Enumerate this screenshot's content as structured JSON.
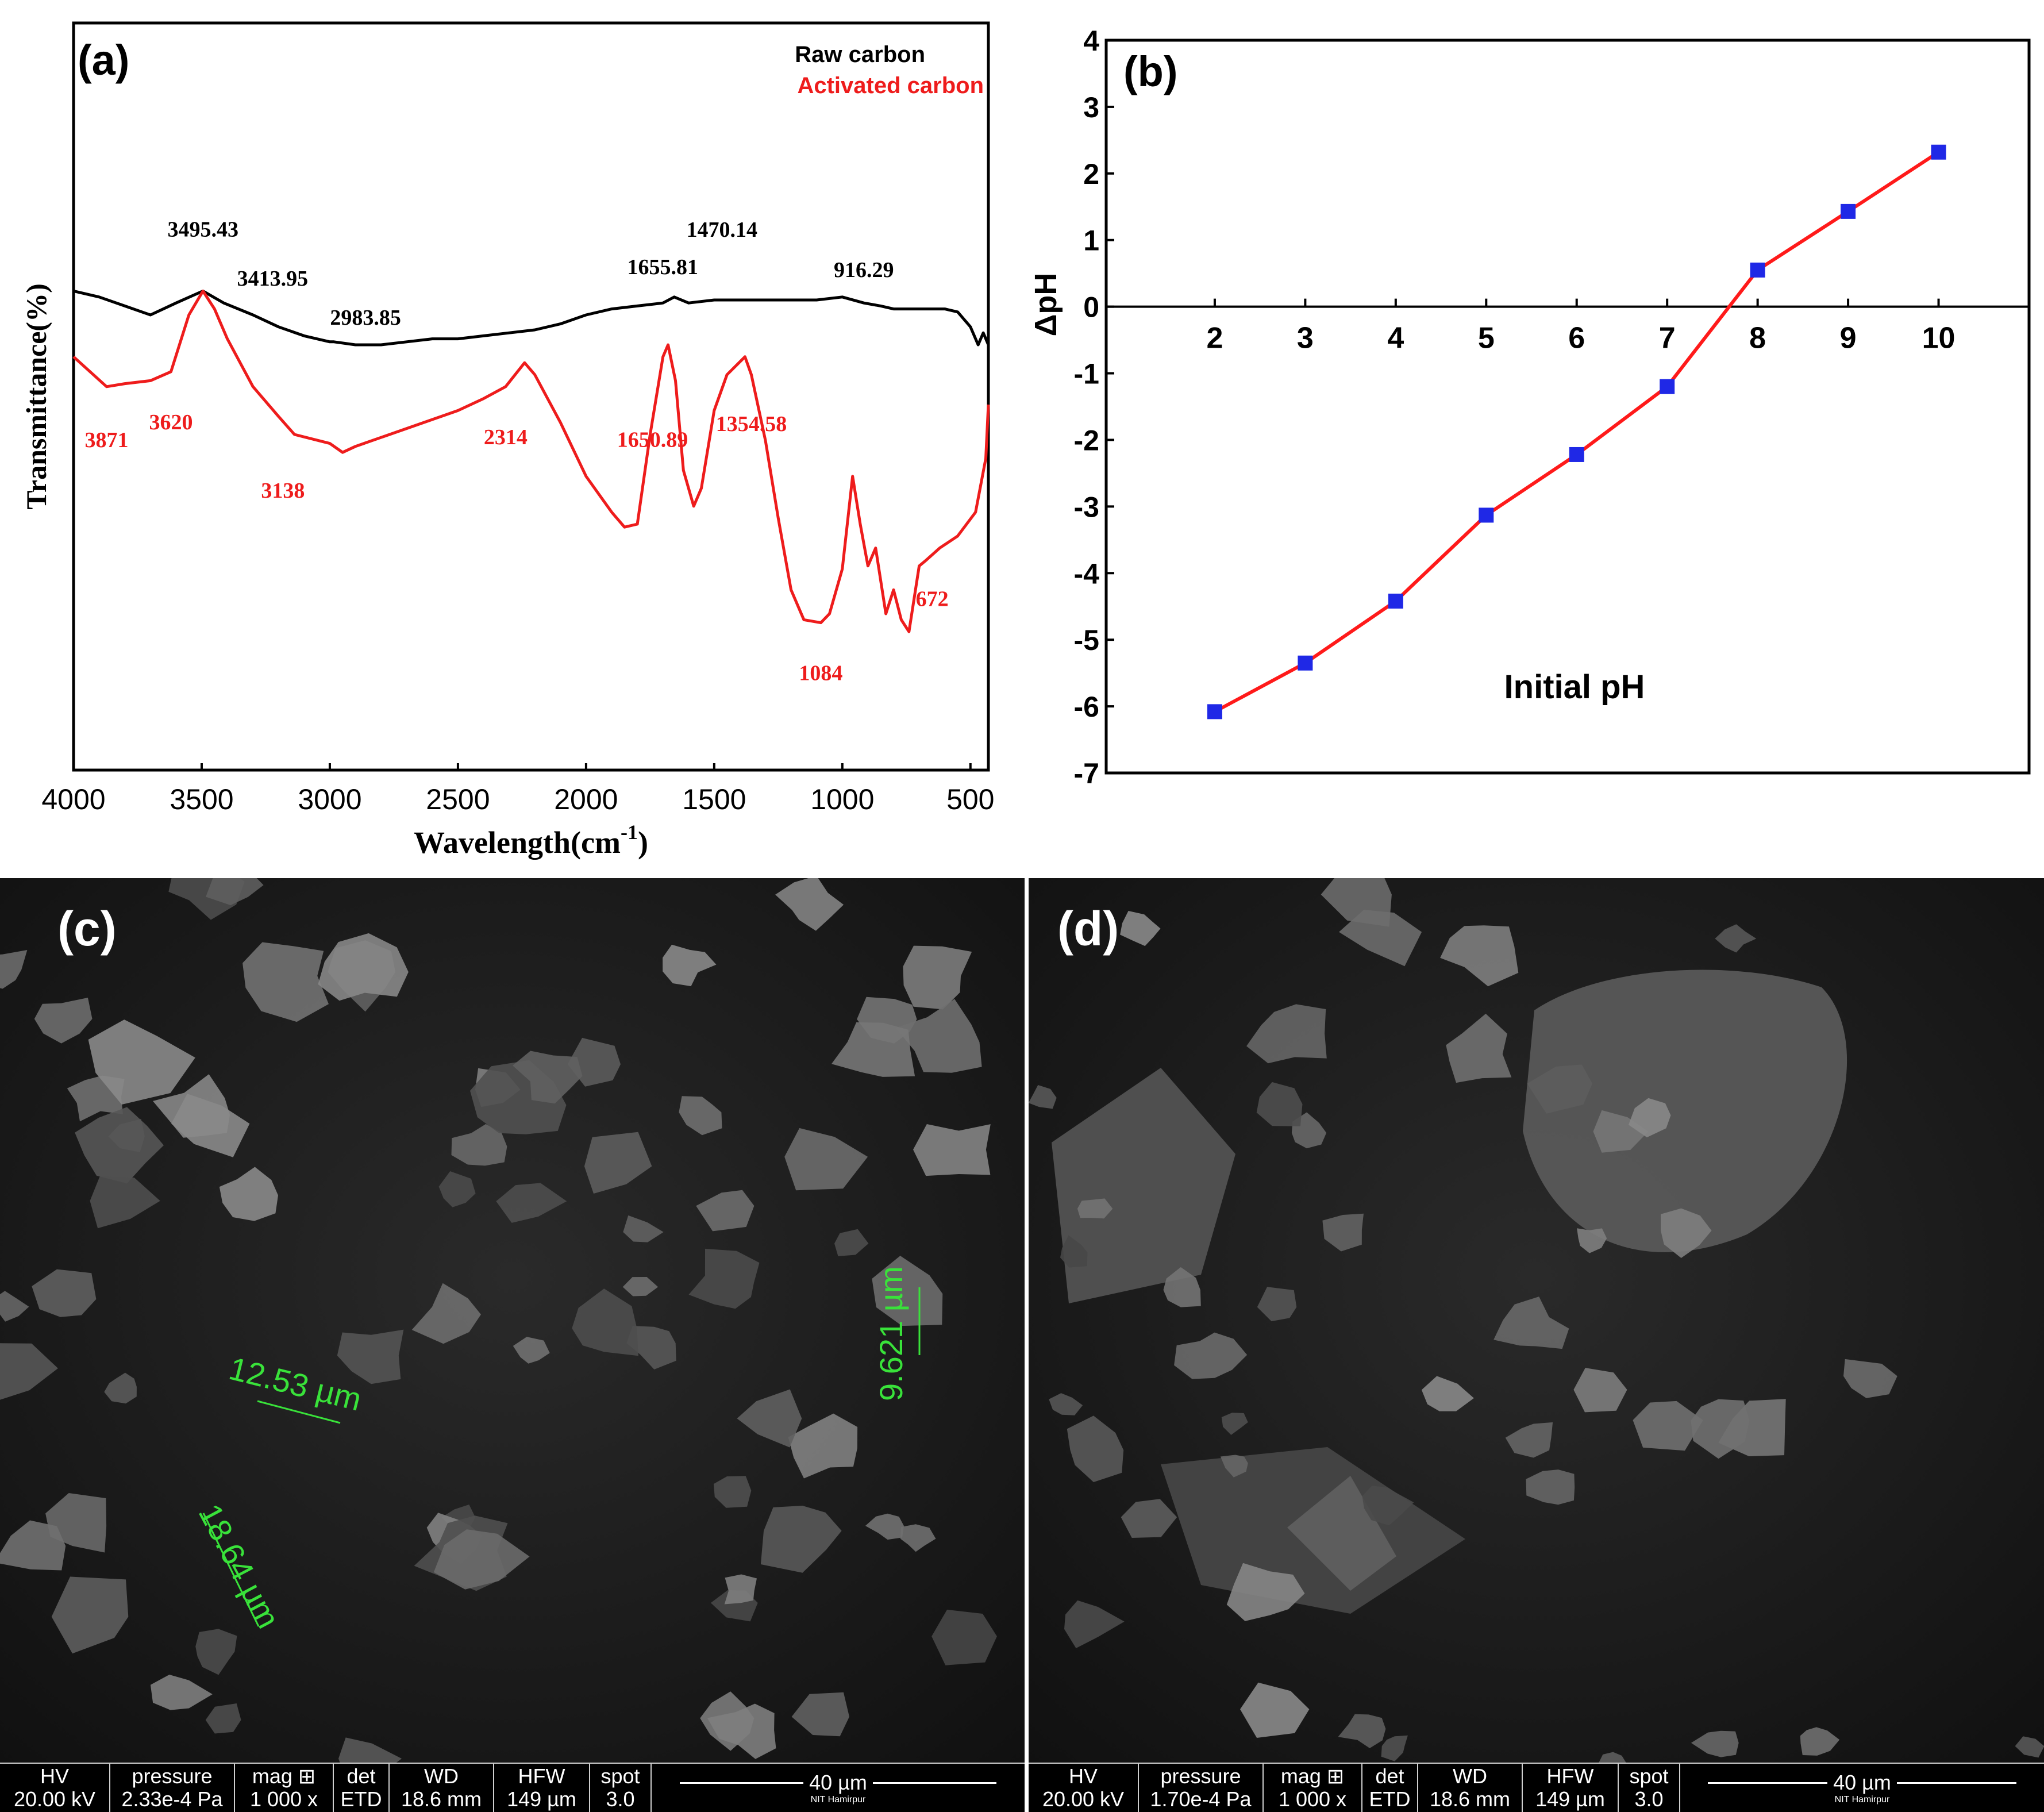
{
  "chart_data": [
    {
      "panel": "(a)",
      "type": "line",
      "xlabel": "Wavelength(cm",
      "xlabel_sup": "-1",
      "xlabel_close": ")",
      "ylabel": "Transmittance(%)",
      "xlim": [
        4000,
        430
      ],
      "x_reversed": true,
      "xticks": [
        4000,
        3500,
        3000,
        2500,
        2000,
        1500,
        1000,
        500
      ],
      "legend": [
        "Raw carbon",
        "Activated carbon"
      ],
      "legend_position": "top-right",
      "series": [
        {
          "name": "Raw carbon",
          "color": "#000000",
          "x": [
            4000,
            3900,
            3800,
            3700,
            3600,
            3495,
            3414,
            3300,
            3200,
            3100,
            3000,
            2984,
            2900,
            2800,
            2700,
            2600,
            2500,
            2400,
            2300,
            2200,
            2100,
            2000,
            1900,
            1800,
            1700,
            1656,
            1600,
            1500,
            1470,
            1400,
            1300,
            1200,
            1100,
            1000,
            916,
            850,
            800,
            700,
            600,
            550,
            500,
            470,
            450,
            430
          ],
          "y": [
            0.78,
            0.76,
            0.73,
            0.7,
            0.74,
            0.78,
            0.74,
            0.7,
            0.66,
            0.63,
            0.61,
            0.61,
            0.6,
            0.6,
            0.61,
            0.62,
            0.62,
            0.63,
            0.64,
            0.65,
            0.67,
            0.7,
            0.72,
            0.73,
            0.74,
            0.76,
            0.74,
            0.75,
            0.75,
            0.75,
            0.75,
            0.75,
            0.75,
            0.76,
            0.74,
            0.73,
            0.72,
            0.72,
            0.72,
            0.71,
            0.66,
            0.6,
            0.64,
            0.6
          ]
        },
        {
          "name": "Activated carbon",
          "color": "#ee1c1c",
          "x": [
            4000,
            3871,
            3800,
            3700,
            3620,
            3550,
            3495,
            3450,
            3400,
            3300,
            3200,
            3138,
            3000,
            2950,
            2900,
            2800,
            2700,
            2500,
            2400,
            2314,
            2240,
            2200,
            2100,
            2000,
            1900,
            1850,
            1800,
            1750,
            1700,
            1680,
            1651,
            1620,
            1580,
            1550,
            1500,
            1450,
            1380,
            1355,
            1300,
            1250,
            1200,
            1150,
            1084,
            1050,
            1000,
            960,
            930,
            900,
            870,
            830,
            800,
            770,
            740,
            700,
            672,
            620,
            550,
            480,
            440,
            430
          ],
          "y": [
            0.56,
            0.46,
            0.47,
            0.48,
            0.51,
            0.7,
            0.78,
            0.72,
            0.62,
            0.46,
            0.36,
            0.3,
            0.27,
            0.24,
            0.26,
            0.29,
            0.32,
            0.38,
            0.42,
            0.46,
            0.54,
            0.5,
            0.34,
            0.16,
            0.04,
            -0.01,
            0.0,
            0.3,
            0.56,
            0.6,
            0.48,
            0.18,
            0.06,
            0.12,
            0.38,
            0.5,
            0.56,
            0.5,
            0.28,
            0.02,
            -0.22,
            -0.32,
            -0.33,
            -0.3,
            -0.15,
            0.16,
            0.0,
            -0.14,
            -0.08,
            -0.3,
            -0.22,
            -0.32,
            -0.36,
            -0.14,
            -0.12,
            -0.08,
            -0.04,
            0.04,
            0.22,
            0.4
          ]
        }
      ],
      "annotations": [
        {
          "text": "3495.43",
          "series": "Raw carbon",
          "x": 3495
        },
        {
          "text": "3413.95",
          "series": "Raw carbon",
          "x": 3414
        },
        {
          "text": "2983.85",
          "series": "Raw carbon",
          "x": 2984
        },
        {
          "text": "1655.81",
          "series": "Raw carbon",
          "x": 1656
        },
        {
          "text": "1470.14",
          "series": "Raw carbon",
          "x": 1470
        },
        {
          "text": "916.29",
          "series": "Raw carbon",
          "x": 916
        },
        {
          "text": "3871",
          "series": "Activated carbon",
          "x": 3871
        },
        {
          "text": "3620",
          "series": "Activated carbon",
          "x": 3620
        },
        {
          "text": "3138",
          "series": "Activated carbon",
          "x": 3138
        },
        {
          "text": "2314",
          "series": "Activated carbon",
          "x": 2314
        },
        {
          "text": "1650.89",
          "series": "Activated carbon",
          "x": 1651
        },
        {
          "text": "1354.58",
          "series": "Activated carbon",
          "x": 1355
        },
        {
          "text": "1084",
          "series": "Activated carbon",
          "x": 1084
        },
        {
          "text": "672",
          "series": "Activated carbon",
          "x": 672
        }
      ]
    },
    {
      "panel": "(b)",
      "type": "line",
      "xlabel": "Initial pH",
      "ylabel": "ΔpH",
      "xlim": [
        0.8,
        11.0
      ],
      "ylim": [
        -7,
        4
      ],
      "xticks": [
        2,
        3,
        4,
        5,
        6,
        7,
        8,
        9,
        10
      ],
      "yticks": [
        4,
        3,
        2,
        1,
        0,
        -1,
        -2,
        -3,
        -4,
        -5,
        -6,
        -7
      ],
      "grid": false,
      "series": [
        {
          "line_color": "#ff1a1a",
          "marker_color": "#1f28e6",
          "x": [
            2,
            3,
            4,
            5,
            6,
            7,
            8,
            9,
            10
          ],
          "y": [
            -6.08,
            -5.35,
            -4.42,
            -3.13,
            -2.22,
            -1.2,
            0.55,
            1.43,
            2.32
          ]
        }
      ]
    }
  ],
  "sem": [
    {
      "label": "(c)",
      "columns": [
        {
          "header": "HV",
          "value": "20.00 kV"
        },
        {
          "header": "pressure",
          "value": "2.33e-4 Pa"
        },
        {
          "header": "mag ⊞",
          "value": "1 000 x"
        },
        {
          "header": "det",
          "value": "ETD"
        },
        {
          "header": "WD",
          "value": "18.6 mm"
        },
        {
          "header": "HFW",
          "value": "149 µm"
        },
        {
          "header": "spot",
          "value": "3.0"
        }
      ],
      "scale": "40 µm",
      "institution": "NIT Hamirpur",
      "measurements": [
        "12.53 µm",
        "9.621 µm",
        "18.64 µm"
      ]
    },
    {
      "label": "(d)",
      "columns": [
        {
          "header": "HV",
          "value": "20.00 kV"
        },
        {
          "header": "pressure",
          "value": "1.70e-4 Pa"
        },
        {
          "header": "mag ⊞",
          "value": "1 000 x"
        },
        {
          "header": "det",
          "value": "ETD"
        },
        {
          "header": "WD",
          "value": "18.6 mm"
        },
        {
          "header": "HFW",
          "value": "149 µm"
        },
        {
          "header": "spot",
          "value": "3.0"
        }
      ],
      "scale": "40 µm",
      "institution": "NIT Hamirpur"
    }
  ]
}
